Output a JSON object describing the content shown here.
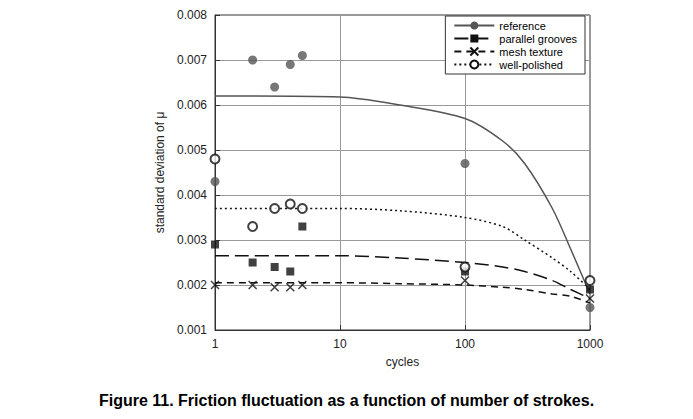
{
  "chart_data": {
    "type": "scatter",
    "title": "Figure 11. Friction fluctuation as a function of number of strokes.",
    "x_label": "cycles",
    "y_label": "standard deviation of μ",
    "log": "x",
    "grid": true,
    "legend": "upper right",
    "xlim": [
      1,
      1000
    ],
    "xticks": [
      1,
      10,
      100,
      1000
    ],
    "ylim": [
      0.001,
      0.008
    ],
    "yticks": [
      0.001,
      0.002,
      0.003,
      0.004,
      0.005,
      0.006,
      0.007,
      0.008
    ],
    "series": [
      {
        "name": "reference",
        "color": "#555555",
        "marker": "circle",
        "line_style": "solid",
        "x": [
          1,
          2,
          3,
          4,
          5,
          100,
          1000
        ],
        "values": [
          0.0043,
          0.007,
          0.0064,
          0.0069,
          0.0071,
          0.0047,
          0.0015
        ],
        "fit_x": [
          1,
          10,
          30,
          100,
          200,
          300,
          500,
          700,
          1000
        ],
        "fit_values": [
          0.0062,
          0.00618,
          0.006,
          0.0057,
          0.0052,
          0.0047,
          0.0037,
          0.0028,
          0.0018
        ]
      },
      {
        "name": "parallel grooves",
        "color": "#111111",
        "marker": "square",
        "line_style": "long_dash",
        "x": [
          1,
          2,
          3,
          4,
          5,
          100,
          1000
        ],
        "values": [
          0.0029,
          0.0025,
          0.0024,
          0.0023,
          0.0033,
          0.0023,
          0.0019
        ],
        "fit_x": [
          1,
          10,
          30,
          100,
          200,
          300,
          500,
          700,
          1000
        ],
        "fit_values": [
          0.00265,
          0.00265,
          0.0026,
          0.0025,
          0.0024,
          0.0023,
          0.0021,
          0.0019,
          0.0017
        ]
      },
      {
        "name": "mesh texture",
        "color": "#111111",
        "marker": "x",
        "line_style": "dashed",
        "x": [
          1,
          2,
          3,
          4,
          5,
          100,
          1000
        ],
        "values": [
          0.002,
          0.002,
          0.00195,
          0.00195,
          0.002,
          0.0021,
          0.0017
        ],
        "fit_x": [
          1,
          10,
          30,
          100,
          200,
          300,
          500,
          700,
          1000
        ],
        "fit_values": [
          0.00205,
          0.00205,
          0.00203,
          0.002,
          0.00195,
          0.0019,
          0.0018,
          0.00175,
          0.0016
        ]
      },
      {
        "name": "well-polished",
        "color": "#111111",
        "marker": "open_circle",
        "line_style": "dotted",
        "x": [
          1,
          2,
          3,
          4,
          5,
          100,
          1000
        ],
        "values": [
          0.0048,
          0.0033,
          0.0037,
          0.0038,
          0.0037,
          0.0024,
          0.0021
        ],
        "fit_x": [
          1,
          10,
          30,
          100,
          200,
          300,
          500,
          700,
          1000
        ],
        "fit_values": [
          0.0037,
          0.0037,
          0.00365,
          0.0035,
          0.0033,
          0.003,
          0.0026,
          0.0023,
          0.0019
        ]
      }
    ]
  }
}
